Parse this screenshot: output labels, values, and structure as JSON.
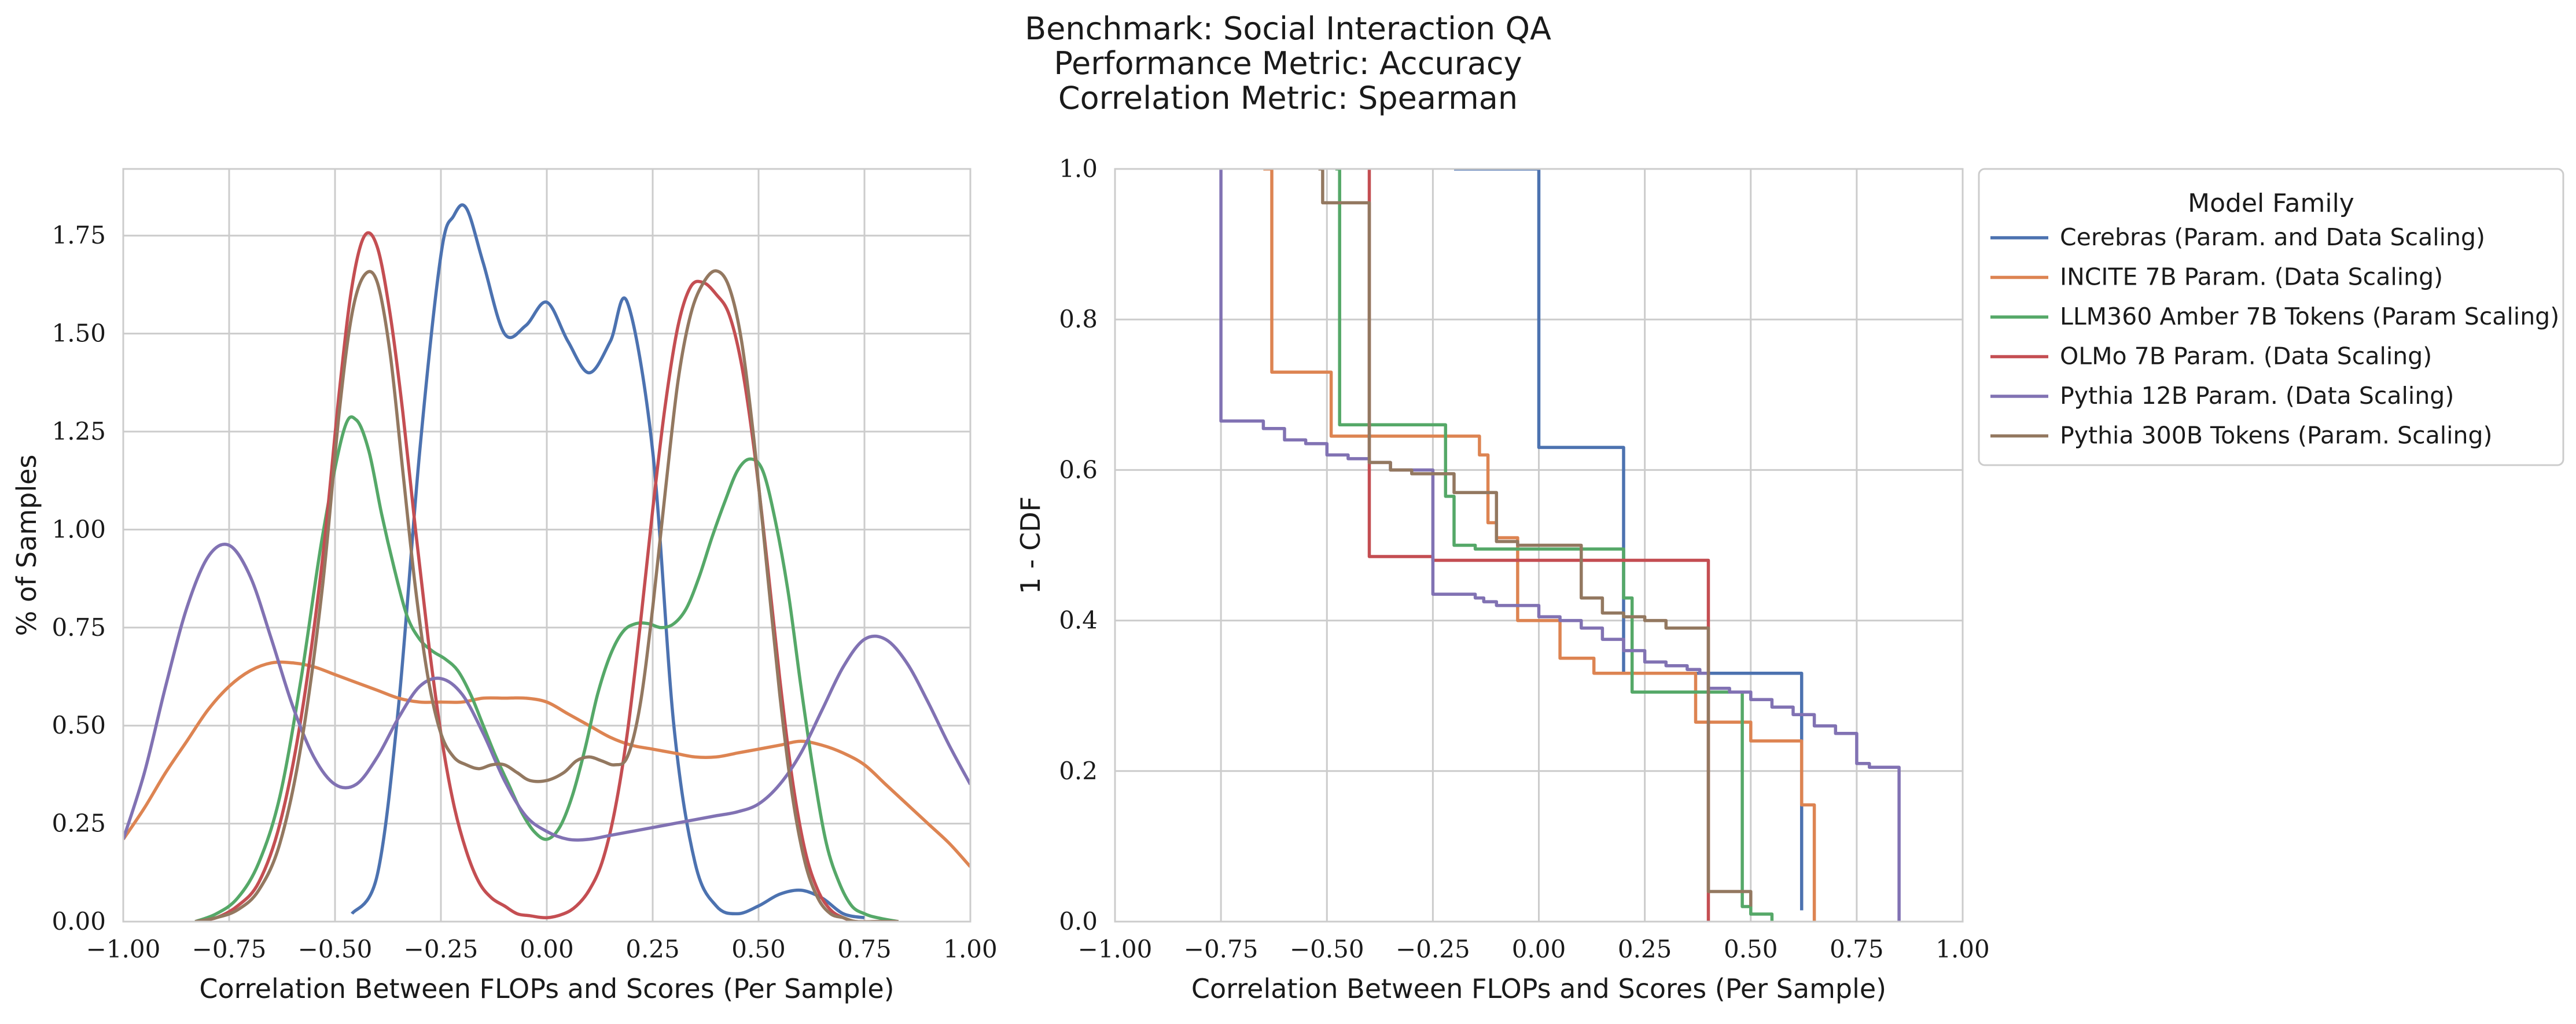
{
  "suptitle": [
    "Benchmark: Social Interaction QA",
    "Performance Metric: Accuracy",
    "Correlation Metric: Spearman"
  ],
  "colors": {
    "Cerebras (Param. and Data Scaling)": "#4c72b0",
    "INCITE 7B Param. (Data Scaling)": "#dd8452",
    "LLM360 Amber 7B Tokens (Param Scaling)": "#55a868",
    "OLMo 7B Param. (Data Scaling)": "#c44e52",
    "Pythia 12B Param. (Data Scaling)": "#8172b3",
    "Pythia 300B Tokens (Param. Scaling)": "#937860"
  },
  "legend": {
    "title": "Model Family",
    "placement": "outside right, top",
    "entries": [
      "Cerebras (Param. and Data Scaling)",
      "INCITE 7B Param. (Data Scaling)",
      "LLM360 Amber 7B Tokens (Param Scaling)",
      "OLMo 7B Param. (Data Scaling)",
      "Pythia 12B Param. (Data Scaling)",
      "Pythia 300B Tokens (Param. Scaling)"
    ]
  },
  "chart_data": [
    {
      "type": "line",
      "subtype": "kde",
      "xlabel": "Correlation Between FLOPs and Scores (Per Sample)",
      "ylabel": "% of Samples",
      "xlim": [
        -1.0,
        1.0
      ],
      "ylim": [
        0.0,
        1.92
      ],
      "xticks": [
        "−1.00",
        "−0.75",
        "−0.50",
        "−0.25",
        "0.00",
        "0.25",
        "0.50",
        "0.75",
        "1.00"
      ],
      "yticks": [
        "0.00",
        "0.25",
        "0.50",
        "0.75",
        "1.00",
        "1.25",
        "1.50",
        "1.75"
      ],
      "grid": true,
      "series": [
        {
          "name": "Cerebras (Param. and Data Scaling)",
          "x": [
            -0.46,
            -0.4,
            -0.35,
            -0.3,
            -0.25,
            -0.22,
            -0.19,
            -0.15,
            -0.1,
            -0.05,
            0.0,
            0.05,
            0.1,
            0.15,
            0.19,
            0.25,
            0.3,
            0.35,
            0.4,
            0.45,
            0.5,
            0.55,
            0.6,
            0.65,
            0.7,
            0.75
          ],
          "y": [
            0.02,
            0.12,
            0.55,
            1.2,
            1.7,
            1.8,
            1.82,
            1.68,
            1.5,
            1.52,
            1.58,
            1.48,
            1.4,
            1.48,
            1.58,
            1.2,
            0.5,
            0.15,
            0.04,
            0.02,
            0.04,
            0.07,
            0.08,
            0.06,
            0.02,
            0.01
          ]
        },
        {
          "name": "INCITE 7B Param. (Data Scaling)",
          "x": [
            -1.0,
            -0.95,
            -0.9,
            -0.85,
            -0.8,
            -0.75,
            -0.7,
            -0.65,
            -0.6,
            -0.55,
            -0.5,
            -0.45,
            -0.4,
            -0.35,
            -0.3,
            -0.25,
            -0.2,
            -0.15,
            -0.1,
            -0.05,
            0.0,
            0.05,
            0.1,
            0.15,
            0.2,
            0.25,
            0.3,
            0.35,
            0.4,
            0.45,
            0.5,
            0.55,
            0.6,
            0.65,
            0.7,
            0.75,
            0.8,
            0.85,
            0.9,
            0.95,
            1.0
          ],
          "y": [
            0.21,
            0.29,
            0.38,
            0.46,
            0.54,
            0.6,
            0.64,
            0.66,
            0.66,
            0.65,
            0.63,
            0.61,
            0.59,
            0.57,
            0.56,
            0.56,
            0.56,
            0.57,
            0.57,
            0.57,
            0.56,
            0.53,
            0.5,
            0.47,
            0.45,
            0.44,
            0.43,
            0.42,
            0.42,
            0.43,
            0.44,
            0.45,
            0.46,
            0.45,
            0.43,
            0.4,
            0.35,
            0.3,
            0.25,
            0.2,
            0.14
          ]
        },
        {
          "name": "LLM360 Amber 7B Tokens (Param Scaling)",
          "x": [
            -0.83,
            -0.78,
            -0.73,
            -0.68,
            -0.63,
            -0.58,
            -0.53,
            -0.48,
            -0.45,
            -0.42,
            -0.39,
            -0.36,
            -0.33,
            -0.3,
            -0.27,
            -0.24,
            -0.21,
            -0.18,
            -0.15,
            -0.12,
            -0.09,
            -0.06,
            -0.03,
            0.0,
            0.03,
            0.06,
            0.09,
            0.12,
            0.15,
            0.18,
            0.21,
            0.24,
            0.27,
            0.3,
            0.33,
            0.36,
            0.39,
            0.42,
            0.45,
            0.48,
            0.51,
            0.54,
            0.57,
            0.6,
            0.63,
            0.66,
            0.69,
            0.72,
            0.75,
            0.78,
            0.83
          ],
          "y": [
            0.0,
            0.02,
            0.06,
            0.15,
            0.32,
            0.62,
            0.98,
            1.25,
            1.28,
            1.2,
            1.04,
            0.9,
            0.78,
            0.72,
            0.69,
            0.67,
            0.64,
            0.58,
            0.5,
            0.42,
            0.35,
            0.28,
            0.23,
            0.21,
            0.24,
            0.32,
            0.44,
            0.58,
            0.68,
            0.74,
            0.76,
            0.76,
            0.75,
            0.76,
            0.8,
            0.88,
            0.98,
            1.07,
            1.15,
            1.18,
            1.15,
            1.02,
            0.84,
            0.6,
            0.38,
            0.2,
            0.1,
            0.04,
            0.02,
            0.01,
            0.0
          ]
        },
        {
          "name": "OLMo 7B Param. (Data Scaling)",
          "x": [
            -0.83,
            -0.78,
            -0.73,
            -0.68,
            -0.63,
            -0.58,
            -0.53,
            -0.49,
            -0.46,
            -0.43,
            -0.4,
            -0.37,
            -0.34,
            -0.31,
            -0.28,
            -0.25,
            -0.22,
            -0.19,
            -0.16,
            -0.13,
            -0.1,
            -0.07,
            -0.04,
            0.0,
            0.04,
            0.07,
            0.1,
            0.13,
            0.16,
            0.19,
            0.22,
            0.25,
            0.28,
            0.31,
            0.34,
            0.37,
            0.4,
            0.43,
            0.46,
            0.49,
            0.52,
            0.55,
            0.58,
            0.61,
            0.64,
            0.67,
            0.7,
            0.73,
            0.78,
            0.83
          ],
          "y": [
            0.0,
            0.01,
            0.04,
            0.1,
            0.25,
            0.52,
            0.92,
            1.35,
            1.62,
            1.75,
            1.72,
            1.55,
            1.3,
            1.0,
            0.72,
            0.48,
            0.3,
            0.18,
            0.1,
            0.06,
            0.04,
            0.02,
            0.015,
            0.01,
            0.02,
            0.04,
            0.08,
            0.15,
            0.28,
            0.48,
            0.75,
            1.05,
            1.32,
            1.52,
            1.62,
            1.63,
            1.6,
            1.55,
            1.42,
            1.2,
            0.92,
            0.62,
            0.36,
            0.18,
            0.08,
            0.03,
            0.01,
            0.0,
            0.0,
            0.0
          ]
        },
        {
          "name": "Pythia 12B Param. (Data Scaling)",
          "x": [
            -1.0,
            -0.95,
            -0.9,
            -0.85,
            -0.8,
            -0.75,
            -0.7,
            -0.65,
            -0.6,
            -0.55,
            -0.5,
            -0.45,
            -0.4,
            -0.35,
            -0.3,
            -0.25,
            -0.2,
            -0.15,
            -0.1,
            -0.05,
            0.0,
            0.05,
            0.1,
            0.15,
            0.2,
            0.25,
            0.3,
            0.35,
            0.4,
            0.45,
            0.5,
            0.55,
            0.6,
            0.65,
            0.7,
            0.75,
            0.8,
            0.85,
            0.9,
            0.95,
            1.0
          ],
          "y": [
            0.21,
            0.38,
            0.6,
            0.8,
            0.93,
            0.96,
            0.88,
            0.72,
            0.55,
            0.42,
            0.35,
            0.35,
            0.42,
            0.52,
            0.6,
            0.62,
            0.58,
            0.48,
            0.36,
            0.27,
            0.23,
            0.21,
            0.21,
            0.22,
            0.23,
            0.24,
            0.25,
            0.26,
            0.27,
            0.28,
            0.3,
            0.35,
            0.43,
            0.54,
            0.65,
            0.72,
            0.72,
            0.66,
            0.56,
            0.45,
            0.35
          ]
        },
        {
          "name": "Pythia 300B Tokens (Param. Scaling)",
          "x": [
            -0.83,
            -0.78,
            -0.73,
            -0.68,
            -0.63,
            -0.58,
            -0.53,
            -0.49,
            -0.46,
            -0.43,
            -0.4,
            -0.37,
            -0.34,
            -0.31,
            -0.28,
            -0.25,
            -0.22,
            -0.19,
            -0.16,
            -0.13,
            -0.1,
            -0.07,
            -0.04,
            0.0,
            0.04,
            0.07,
            0.1,
            0.13,
            0.16,
            0.19,
            0.22,
            0.25,
            0.28,
            0.31,
            0.34,
            0.37,
            0.4,
            0.43,
            0.46,
            0.49,
            0.52,
            0.55,
            0.58,
            0.61,
            0.64,
            0.67,
            0.7,
            0.73,
            0.78,
            0.83
          ],
          "y": [
            0.0,
            0.01,
            0.03,
            0.08,
            0.2,
            0.45,
            0.85,
            1.3,
            1.55,
            1.65,
            1.63,
            1.45,
            1.15,
            0.85,
            0.62,
            0.48,
            0.42,
            0.4,
            0.39,
            0.4,
            0.4,
            0.38,
            0.36,
            0.36,
            0.38,
            0.41,
            0.42,
            0.41,
            0.4,
            0.42,
            0.55,
            0.8,
            1.1,
            1.38,
            1.55,
            1.63,
            1.66,
            1.62,
            1.48,
            1.22,
            0.9,
            0.58,
            0.32,
            0.15,
            0.06,
            0.02,
            0.01,
            0.0,
            0.0,
            0.0
          ]
        }
      ]
    },
    {
      "type": "line",
      "subtype": "step",
      "xlabel": "Correlation Between FLOPs and Scores (Per Sample)",
      "ylabel": "1 - CDF",
      "xlim": [
        -1.0,
        1.0
      ],
      "ylim": [
        0.0,
        1.0
      ],
      "xticks": [
        "−1.00",
        "−0.75",
        "−0.50",
        "−0.25",
        "0.00",
        "0.25",
        "0.50",
        "0.75",
        "1.00"
      ],
      "yticks": [
        "0.0",
        "0.2",
        "0.4",
        "0.6",
        "0.8",
        "1.0"
      ],
      "grid": true,
      "series": [
        {
          "name": "Cerebras (Param. and Data Scaling)",
          "x": [
            -0.2,
            0.0,
            0.2,
            0.62
          ],
          "y": [
            1.0,
            0.63,
            0.33,
            0.015
          ]
        },
        {
          "name": "INCITE 7B Param. (Data Scaling)",
          "x": [
            -0.65,
            -0.63,
            -0.49,
            -0.14,
            -0.12,
            -0.1,
            -0.05,
            0.05,
            0.13,
            0.37,
            0.5,
            0.62,
            0.65
          ],
          "y": [
            1.0,
            0.73,
            0.645,
            0.62,
            0.53,
            0.51,
            0.4,
            0.35,
            0.33,
            0.265,
            0.24,
            0.155,
            0.0
          ]
        },
        {
          "name": "LLM360 Amber 7B Tokens (Param Scaling)",
          "x": [
            -0.48,
            -0.47,
            -0.22,
            -0.2,
            -0.15,
            0.2,
            0.22,
            0.48,
            0.5,
            0.55
          ],
          "y": [
            1.0,
            0.66,
            0.565,
            0.5,
            0.495,
            0.43,
            0.305,
            0.02,
            0.01,
            0.0
          ]
        },
        {
          "name": "OLMo 7B Param. (Data Scaling)",
          "x": [
            -0.4,
            -0.4,
            -0.25,
            -0.1,
            0.2,
            0.4,
            0.4
          ],
          "y": [
            1.0,
            0.485,
            0.48,
            0.48,
            0.48,
            0.0,
            0.0
          ]
        },
        {
          "name": "Pythia 12B Param. (Data Scaling)",
          "x": [
            -0.75,
            -0.75,
            -0.65,
            -0.6,
            -0.55,
            -0.5,
            -0.45,
            -0.4,
            -0.35,
            -0.25,
            -0.15,
            -0.13,
            -0.1,
            0.0,
            0.05,
            0.1,
            0.15,
            0.2,
            0.25,
            0.3,
            0.35,
            0.38,
            0.4,
            0.45,
            0.5,
            0.55,
            0.6,
            0.65,
            0.7,
            0.75,
            0.78,
            0.85
          ],
          "y": [
            1.0,
            0.665,
            0.655,
            0.64,
            0.635,
            0.62,
            0.615,
            0.61,
            0.6,
            0.435,
            0.43,
            0.425,
            0.42,
            0.405,
            0.4,
            0.39,
            0.375,
            0.36,
            0.345,
            0.34,
            0.335,
            0.33,
            0.31,
            0.305,
            0.295,
            0.285,
            0.275,
            0.26,
            0.25,
            0.21,
            0.205,
            0.0
          ]
        },
        {
          "name": "Pythia 300B Tokens (Param. Scaling)",
          "x": [
            -0.52,
            -0.51,
            -0.4,
            -0.35,
            -0.3,
            -0.2,
            -0.1,
            -0.05,
            0.1,
            0.15,
            0.2,
            0.25,
            0.3,
            0.4,
            0.5
          ],
          "y": [
            1.0,
            0.955,
            0.61,
            0.6,
            0.595,
            0.57,
            0.505,
            0.5,
            0.43,
            0.41,
            0.405,
            0.4,
            0.39,
            0.04,
            0.02
          ]
        }
      ]
    }
  ]
}
